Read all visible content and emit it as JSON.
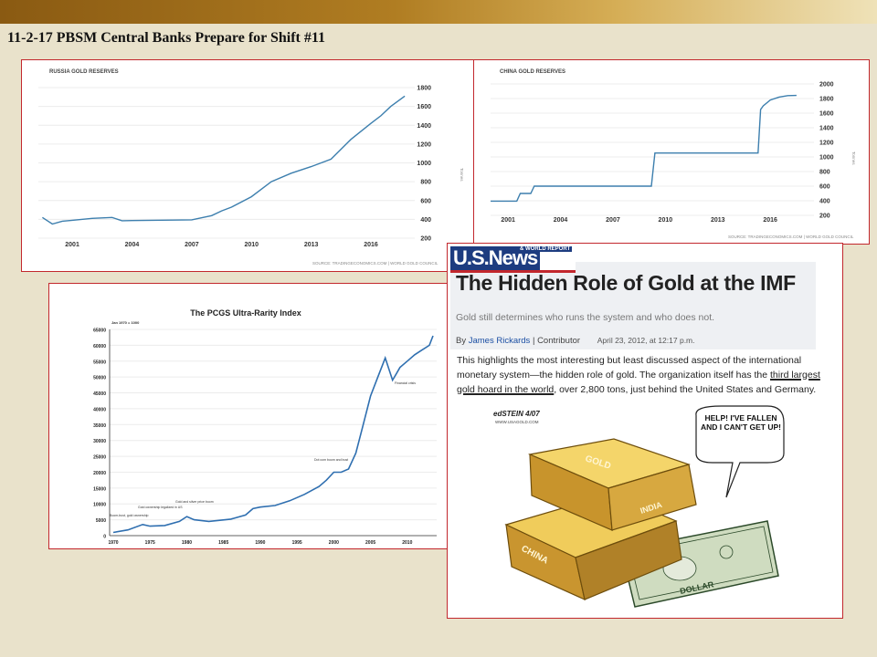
{
  "slide": {
    "title": "11-2-17 PBSM Central Banks Prepare for Shift #11"
  },
  "colors": {
    "accent_border": "#c2272d",
    "line": "#3d7fae",
    "brand_blue": "#1d3c80"
  },
  "russia_chart": {
    "title": "RUSSIA GOLD RESERVES",
    "ylabel": "Tonnes",
    "source": "SOURCE: TRADINGECONOMICS.COM | WORLD GOLD COUNCIL"
  },
  "china_chart": {
    "title": "CHINA GOLD RESERVES",
    "ylabel": "Tonnes",
    "source": "SOURCE: TRADINGECONOMICS.COM | WORLD GOLD COUNCIL"
  },
  "pcgs_chart": {
    "title": "The PCGS Ultra-Rarity Index",
    "base_note": "Jan 1970 = 1000",
    "annotations": [
      "Boom-bust, gold ownership",
      "Gold ownership legalized in US",
      "Gold and silver price boom",
      "Dot com boom and bust",
      "Financial crisis"
    ]
  },
  "article": {
    "logo_main": "U.S.News",
    "logo_sub": "& WORLD REPORT",
    "headline": "The Hidden Role of Gold at the IMF",
    "subhead": "Gold still determines who runs the system and who does not.",
    "by": "By",
    "author": "James Rickards",
    "separator": "|",
    "role": "Contributor",
    "date": "April 23, 2012, at 12:17 p.m.",
    "body_1": "This highlights the most interesting but least discussed aspect of the international monetary system—the hidden role of gold. The organization itself has the ",
    "body_underlined_1": "third largest",
    "body_2": " ",
    "body_underlined_2": "gold hoard in the world",
    "body_3": ", over 2,800 tons, just behind the United States and Germany."
  },
  "cartoon": {
    "signature": "edSTEIN 4/07",
    "signature_url": "WWW.USAGOLD.COM",
    "speech": "HELP! I'VE FALLEN AND I CAN'T GET UP!",
    "bar_top": "GOLD",
    "bar_top_side": "INDIA",
    "bar_bottom": "CHINA",
    "bill": "DOLLAR"
  },
  "chart_data": [
    {
      "type": "line",
      "title": "RUSSIA GOLD RESERVES",
      "ylabel": "Tonnes",
      "x": [
        1999.5,
        2000,
        2000.5,
        2001,
        2002,
        2003,
        2003.5,
        2004,
        2005,
        2006,
        2007,
        2008,
        2008.5,
        2009,
        2010,
        2011,
        2012,
        2013,
        2014,
        2015,
        2016,
        2016.5,
        2017,
        2017.7
      ],
      "y": [
        420,
        350,
        380,
        390,
        410,
        420,
        385,
        387,
        390,
        392,
        395,
        440,
        490,
        530,
        640,
        800,
        890,
        960,
        1040,
        1250,
        1420,
        1500,
        1600,
        1710
      ],
      "xticks": [
        2001,
        2004,
        2007,
        2010,
        2013,
        2016
      ],
      "yticks": [
        200,
        400,
        600,
        800,
        1000,
        1200,
        1400,
        1600,
        1800
      ],
      "ylim": [
        200,
        1800
      ],
      "grid": true
    },
    {
      "type": "line",
      "title": "CHINA GOLD RESERVES",
      "ylabel": "Tonnes",
      "x": [
        2000,
        2001.5,
        2001.7,
        2002.3,
        2002.5,
        2003,
        2009.2,
        2009.4,
        2015.3,
        2015.45,
        2015.6,
        2016,
        2016.5,
        2017,
        2017.5
      ],
      "y": [
        395,
        395,
        500,
        500,
        600,
        600,
        600,
        1054,
        1054,
        1650,
        1700,
        1780,
        1820,
        1840,
        1842
      ],
      "xticks": [
        2001,
        2004,
        2007,
        2010,
        2013,
        2016
      ],
      "yticks": [
        200,
        400,
        600,
        800,
        1000,
        1200,
        1400,
        1600,
        1800,
        2000
      ],
      "ylim": [
        200,
        2000
      ],
      "grid": true
    },
    {
      "type": "line",
      "title": "The PCGS Ultra-Rarity Index",
      "x": [
        1970,
        1972,
        1974,
        1975,
        1977,
        1979,
        1980,
        1981,
        1983,
        1986,
        1988,
        1989,
        1990,
        1992,
        1994,
        1996,
        1998,
        1999,
        2000,
        2001,
        2002,
        2003,
        2004,
        2005,
        2006,
        2007,
        2008,
        2008.5,
        2009,
        2010,
        2011,
        2012,
        2013,
        2013.5
      ],
      "y": [
        1000,
        1800,
        3500,
        3000,
        3200,
        4500,
        6000,
        5000,
        4500,
        5200,
        6500,
        8500,
        9000,
        9500,
        11000,
        13000,
        15500,
        17500,
        20000,
        20000,
        21000,
        26000,
        35000,
        44000,
        50000,
        56000,
        49000,
        51000,
        53000,
        55000,
        57000,
        58500,
        60000,
        63000
      ],
      "xticks": [
        1970,
        1975,
        1980,
        1985,
        1990,
        1995,
        2000,
        2005,
        2010
      ],
      "yticks": [
        0,
        5000,
        10000,
        15000,
        20000,
        25000,
        30000,
        35000,
        40000,
        45000,
        50000,
        55000,
        60000,
        65000
      ],
      "ylim": [
        0,
        65000
      ],
      "grid": true
    }
  ]
}
